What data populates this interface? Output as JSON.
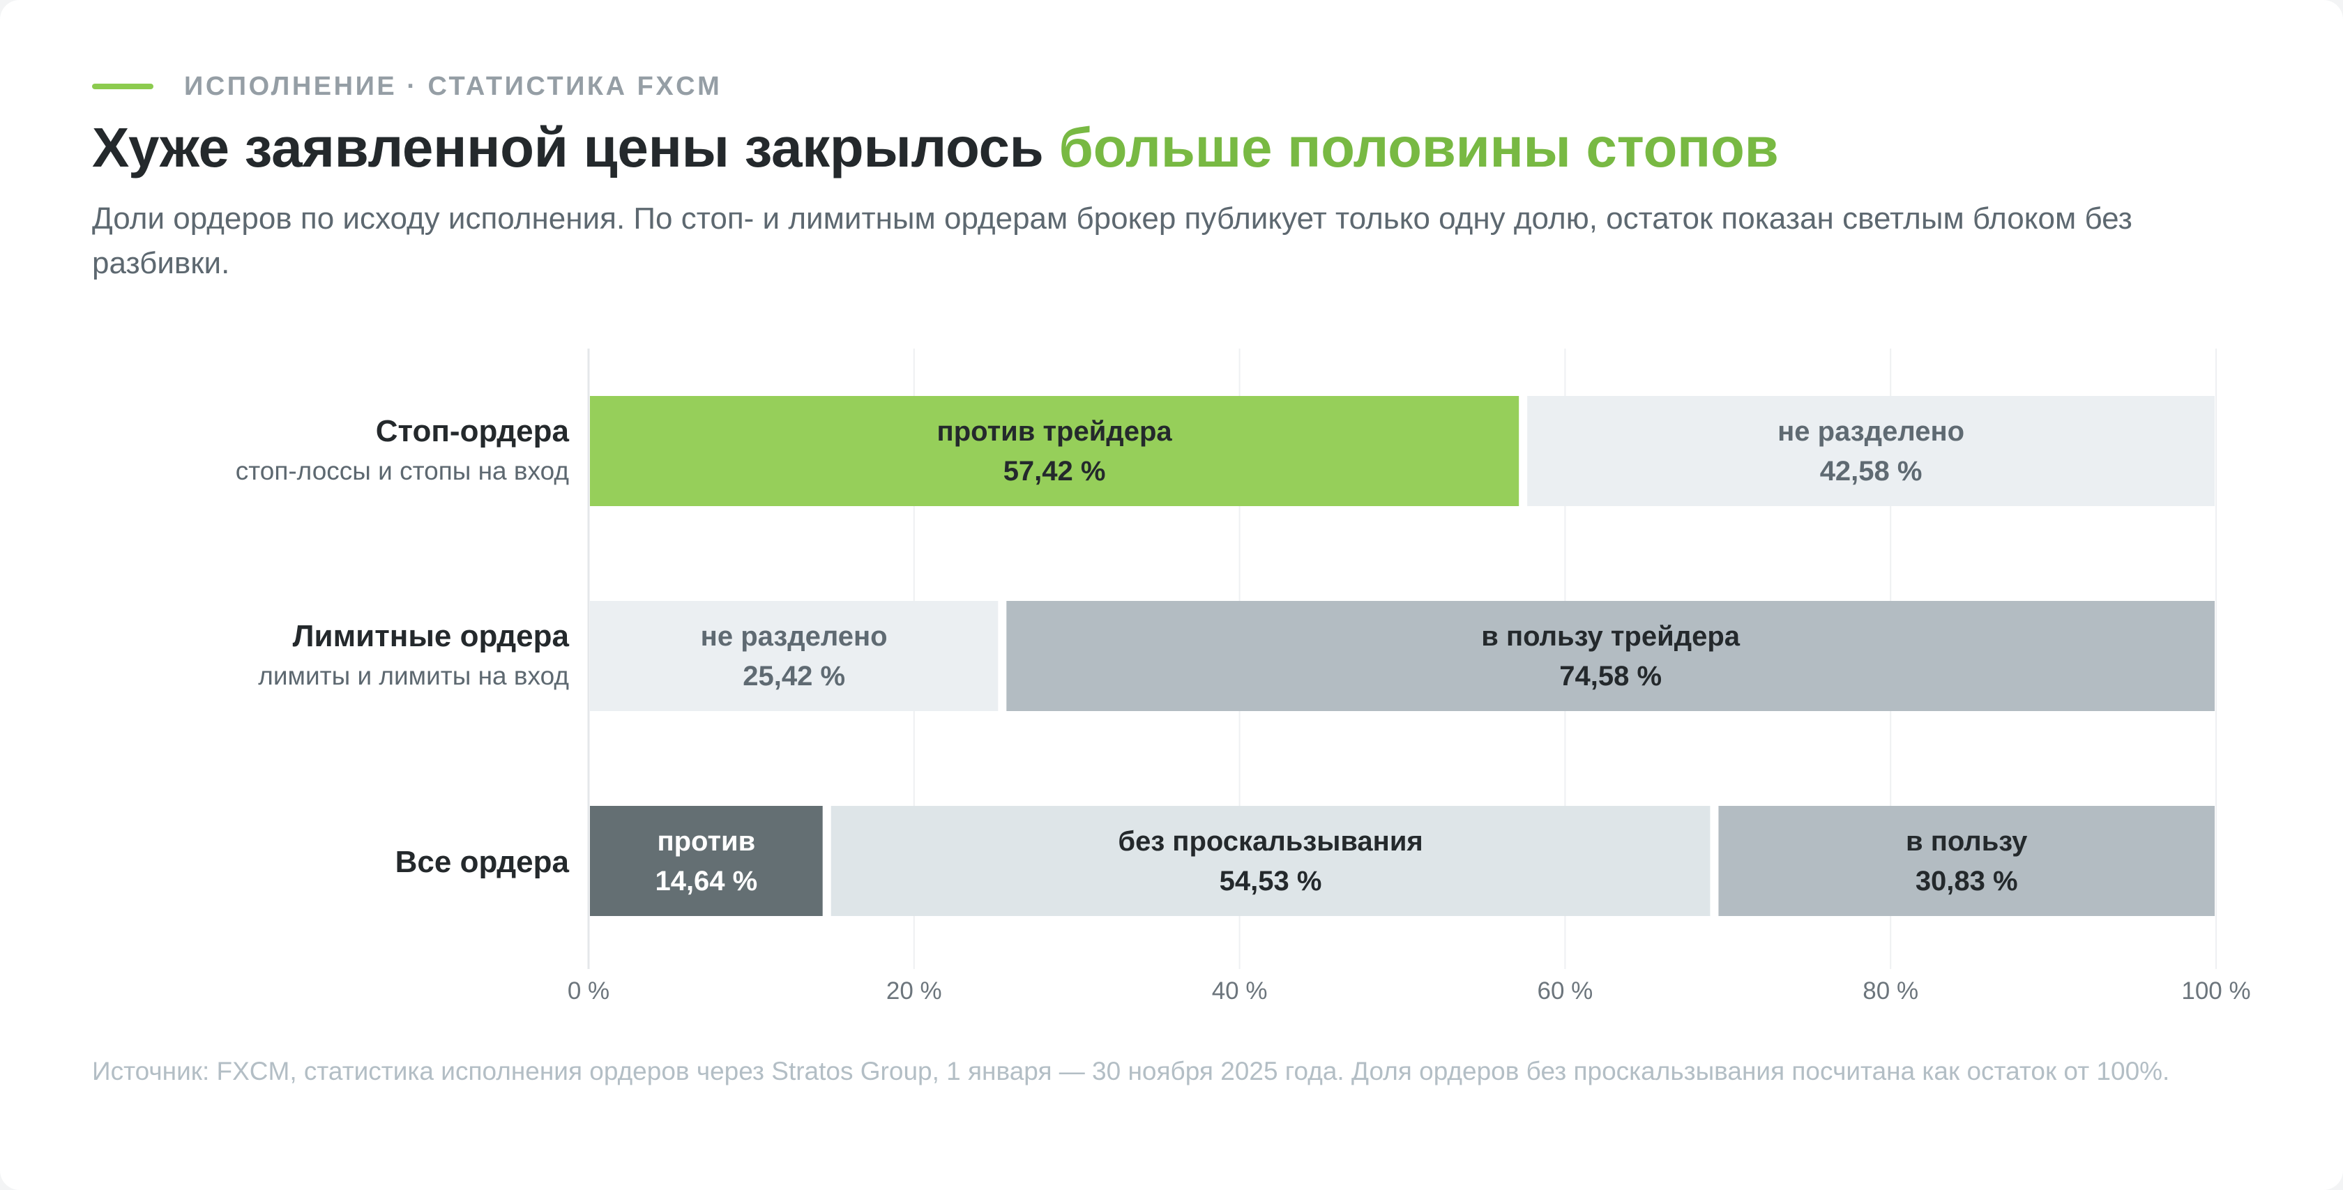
{
  "header": {
    "kicker": "ИСПОЛНЕНИЕ · СТАТИСТИКА FXCM",
    "title_main": "Хуже заявленной цены закрылось ",
    "title_accent": "больше половины стопов",
    "subtitle": "Доли ордеров по исходу исполнения. По стоп- и лимитным ордерам брокер публикует только одну долю, остаток показан светлым блоком без разбивки."
  },
  "chart_data": {
    "type": "bar",
    "orientation": "horizontal",
    "stacked": true,
    "xlim": [
      0,
      100
    ],
    "grid": true,
    "x_ticks": [
      0,
      20,
      40,
      60,
      80,
      100
    ],
    "x_tick_labels": [
      "0 %",
      "20 %",
      "40 %",
      "60 %",
      "80 %",
      "100 %"
    ],
    "rows": [
      {
        "label": "Стоп-ордера",
        "sublabel": "стоп-лоссы и стопы на вход",
        "segments": [
          {
            "label": "против трейдера",
            "value": 57.42,
            "value_label": "57,42 %",
            "color": "#96cf5a",
            "text_color": "#24292c"
          },
          {
            "label": "не разделено",
            "value": 42.58,
            "value_label": "42,58 %",
            "color": "#ebeff2",
            "text_color": "#5f6a72"
          }
        ]
      },
      {
        "label": "Лимитные ордера",
        "sublabel": "лимиты и лимиты на вход",
        "segments": [
          {
            "label": "не разделено",
            "value": 25.42,
            "value_label": "25,42 %",
            "color": "#ebeff2",
            "text_color": "#5f6a72"
          },
          {
            "label": "в пользу трейдера",
            "value": 74.58,
            "value_label": "74,58 %",
            "color": "#b3bcc2",
            "text_color": "#24292c"
          }
        ]
      },
      {
        "label": "Все ордера",
        "sublabel": "",
        "segments": [
          {
            "label": "против",
            "value": 14.64,
            "value_label": "14,64 %",
            "color": "#646f73",
            "text_color": "#ffffff"
          },
          {
            "label": "без проскальзывания",
            "value": 54.53,
            "value_label": "54,53 %",
            "color": "#dee5e8",
            "text_color": "#24292c"
          },
          {
            "label": "в пользу",
            "value": 30.83,
            "value_label": "30,83 %",
            "color": "#b3bcc2",
            "text_color": "#24292c"
          }
        ]
      }
    ]
  },
  "footnote": "Источник: FXCM, статистика исполнения ордеров через Stratos Group, 1 января — 30 ноября 2025 года. Доля ордеров без проскальзывания посчитана как остаток от 100%."
}
